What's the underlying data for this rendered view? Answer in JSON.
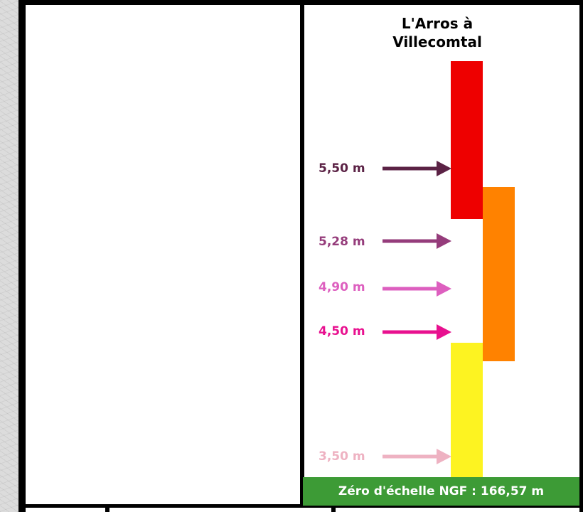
{
  "station": {
    "title_line1": "L'Arros à",
    "title_line2": "Villecomtal"
  },
  "zones": [
    {
      "name": "red",
      "color": "#ee0000"
    },
    {
      "name": "orange",
      "color": "#ff8200"
    },
    {
      "name": "yellow",
      "color": "#fdf321"
    }
  ],
  "levels": [
    {
      "label": "5,50 m",
      "value": 5.5,
      "color": "#5b2245"
    },
    {
      "label": "5,28 m",
      "value": 5.28,
      "color": "#953c7b"
    },
    {
      "label": "4,90 m",
      "value": 4.9,
      "color": "#dd5fbf"
    },
    {
      "label": "4,50 m",
      "value": 4.5,
      "color": "#e8108f"
    },
    {
      "label": "3,50 m",
      "value": 3.5,
      "color": "#eeb2c2"
    }
  ],
  "zero_reference": {
    "label": "Zéro d'échelle NGF : 166,57 m",
    "color": "#3d9b36"
  }
}
